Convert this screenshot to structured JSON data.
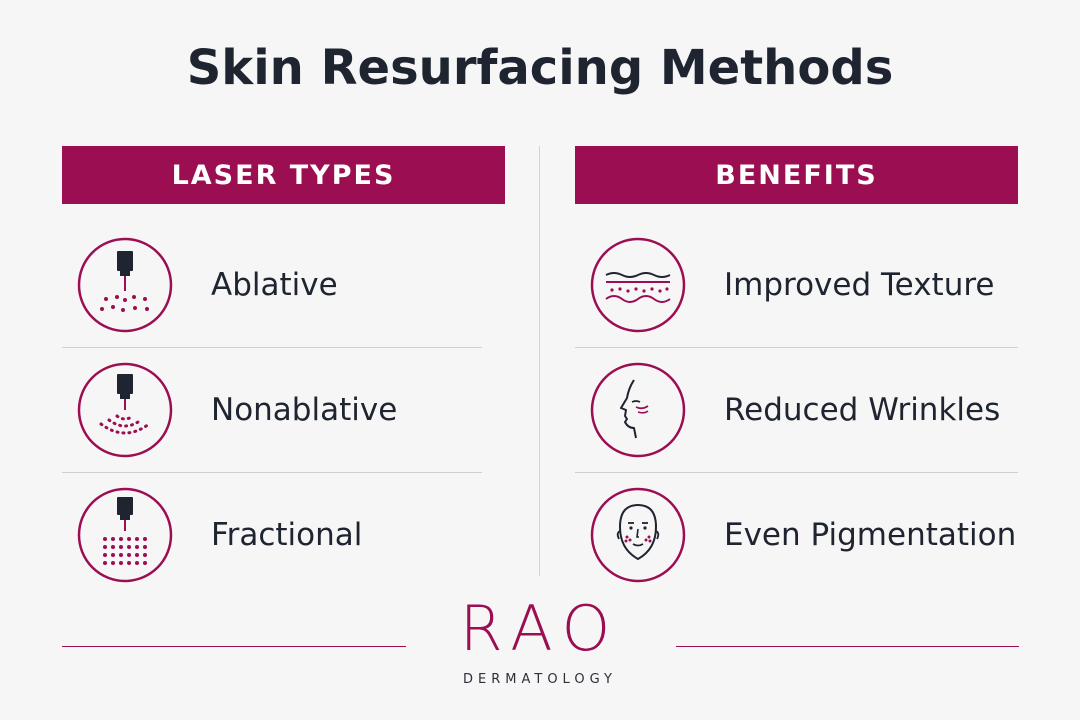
{
  "title": "Skin Resurfacing Methods",
  "colors": {
    "accent": "#9b0e52",
    "text": "#1e2430"
  },
  "left_column": {
    "header": "LASER TYPES",
    "items": [
      {
        "label": "Ablative",
        "icon": "laser-ablative-icon"
      },
      {
        "label": "Nonablative",
        "icon": "laser-nonablative-icon"
      },
      {
        "label": "Fractional",
        "icon": "laser-fractional-icon"
      }
    ]
  },
  "right_column": {
    "header": "BENEFITS",
    "items": [
      {
        "label": "Improved Texture",
        "icon": "skin-texture-icon"
      },
      {
        "label": "Reduced Wrinkles",
        "icon": "face-profile-icon"
      },
      {
        "label": "Even Pigmentation",
        "icon": "face-front-icon"
      }
    ]
  },
  "brand": {
    "name": "RAO",
    "subtitle": "DERMATOLOGY"
  }
}
